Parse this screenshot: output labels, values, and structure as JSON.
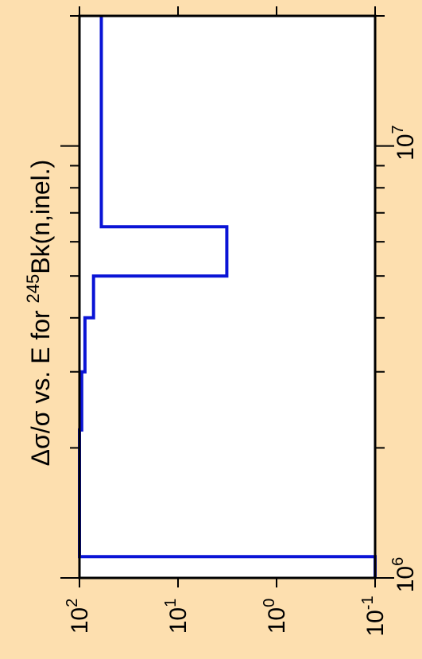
{
  "chart_data": {
    "type": "line",
    "title": "Δσ/σ vs. E for ²⁴⁵Bk(n,inel.)",
    "title_parts": {
      "pre": "Δσ/σ vs. E for ",
      "sup": "245",
      "post": "Bk(n,inel.)"
    },
    "orientation": "rotated 90° counter-clockwise; energy axis runs bottom (low) to top (high), relative uncertainty axis runs right-to-left",
    "xlabel": "",
    "ylabel": "",
    "x_scale": "log",
    "y_scale": "log",
    "xlim": [
      1000000,
      20000000
    ],
    "ylim": [
      0.1,
      100
    ],
    "x_ticks": [
      {
        "base": "10",
        "exp": "6",
        "value": 1000000
      },
      {
        "base": "10",
        "exp": "7",
        "value": 10000000
      }
    ],
    "y_ticks": [
      {
        "base": "10",
        "exp": "2",
        "value": 100
      },
      {
        "base": "10",
        "exp": "1",
        "value": 10
      },
      {
        "base": "10",
        "exp": "0",
        "value": 1
      },
      {
        "base": "10",
        "exp": "-1",
        "value": 0.1
      }
    ],
    "grid": false,
    "background_color": "#FDDFAF",
    "plot_background": "#FFFFFF",
    "series": [
      {
        "color": "#0A14D6",
        "step_x": [
          1000000,
          1120000,
          1120000,
          2200000,
          2200000,
          3000000,
          3000000,
          4000000,
          4000000,
          5000000,
          5000000,
          6500000,
          6500000,
          20000000
        ],
        "step_y": [
          0.1,
          0.1,
          100,
          100,
          95,
          95,
          88,
          88,
          72,
          72,
          3.2,
          3.2,
          60,
          60
        ]
      }
    ]
  }
}
